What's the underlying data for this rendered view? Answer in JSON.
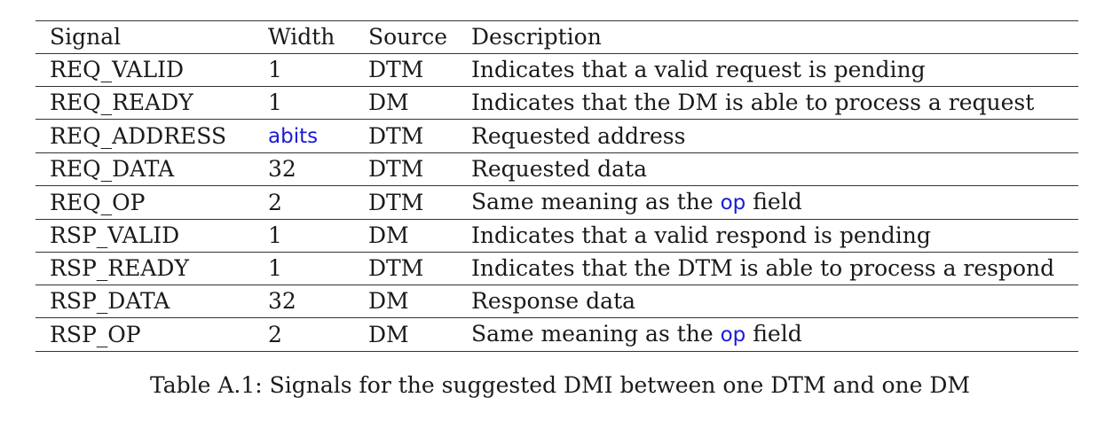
{
  "table": {
    "headers": [
      "Signal",
      "Width",
      "Source",
      "Description"
    ],
    "rows": [
      {
        "signal": "REQ_VALID",
        "width": "1",
        "source": "DTM",
        "description": "Indicates that a valid request is pending"
      },
      {
        "signal": "REQ_READY",
        "width": "1",
        "source": "DM",
        "description": "Indicates that the DM is able to process a request"
      },
      {
        "signal": "REQ_ADDRESS",
        "width": "abits",
        "source": "DTM",
        "description": "Requested address"
      },
      {
        "signal": "REQ_DATA",
        "width": "32",
        "source": "DTM",
        "description": "Requested data"
      },
      {
        "signal": "REQ_OP",
        "width": "2",
        "source": "DTM",
        "description_pre": "Same meaning as the ",
        "description_code": "op",
        "description_post": " field"
      },
      {
        "signal": "RSP_VALID",
        "width": "1",
        "source": "DM",
        "description": "Indicates that a valid respond is pending"
      },
      {
        "signal": "RSP_READY",
        "width": "1",
        "source": "DTM",
        "description": "Indicates that the DTM is able to process a respond"
      },
      {
        "signal": "RSP_DATA",
        "width": "32",
        "source": "DM",
        "description": "Response data"
      },
      {
        "signal": "RSP_OP",
        "width": "2",
        "source": "DM",
        "description_pre": "Same meaning as the ",
        "description_code": "op",
        "description_post": " field"
      }
    ]
  },
  "caption": "Table A.1: Signals for the suggested DMI between one DTM and one DM",
  "colors": {
    "code_highlight": "#1a1ad9",
    "text": "#1a1a1a",
    "rule": "#333333"
  }
}
